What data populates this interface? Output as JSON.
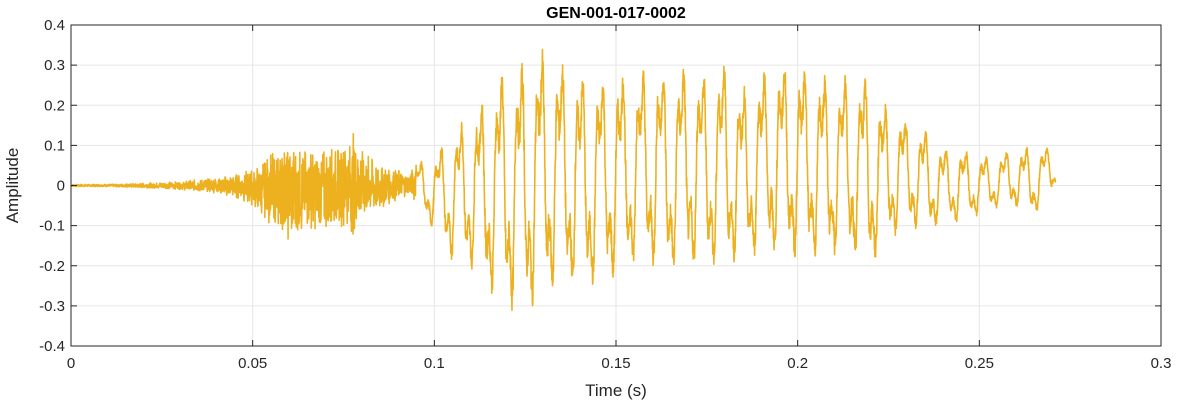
{
  "chart_data": {
    "type": "line",
    "title": "GEN-001-017-0002",
    "xlabel": "Time (s)",
    "ylabel": "Amplitude",
    "xlim": [
      0,
      0.3
    ],
    "ylim": [
      -0.4,
      0.4
    ],
    "xticks": [
      0,
      0.05,
      0.1,
      0.15,
      0.2,
      0.25,
      0.3
    ],
    "xtick_labels": [
      "0",
      "0.05",
      "0.1",
      "0.15",
      "0.2",
      "0.25",
      "0.3"
    ],
    "yticks": [
      -0.4,
      -0.3,
      -0.2,
      -0.1,
      0,
      0.1,
      0.2,
      0.3,
      0.4
    ],
    "ytick_labels": [
      "-0.4",
      "-0.3",
      "-0.2",
      "-0.1",
      "0",
      "0.1",
      "0.2",
      "0.3",
      "0.4"
    ],
    "grid": true,
    "colors": {
      "line": "#EDB120",
      "grid": "#e6e6e6",
      "axes": "#262626"
    },
    "series": [
      {
        "x": [
          0,
          0.01,
          0.02,
          0.03,
          0.04,
          0.045,
          0.05,
          0.055,
          0.06,
          0.065,
          0.07,
          0.075,
          0.078,
          0.08,
          0.085,
          0.09,
          0.093,
          0.095,
          0.1,
          0.105,
          0.11,
          0.115,
          0.12,
          0.125,
          0.13,
          0.135,
          0.14,
          0.145,
          0.15,
          0.155,
          0.16,
          0.165,
          0.17,
          0.175,
          0.18,
          0.185,
          0.19,
          0.195,
          0.2,
          0.205,
          0.21,
          0.215,
          0.22,
          0.225,
          0.23,
          0.235,
          0.24,
          0.245,
          0.25,
          0.255,
          0.26,
          0.265,
          0.27,
          0.271
        ],
        "upper": [
          0.003,
          0.003,
          0.006,
          0.01,
          0.02,
          0.03,
          0.04,
          0.08,
          0.1,
          0.09,
          0.1,
          0.1,
          0.14,
          0.09,
          0.05,
          0.04,
          0.03,
          0.06,
          0.08,
          0.15,
          0.2,
          0.25,
          0.33,
          0.33,
          0.36,
          0.33,
          0.3,
          0.29,
          0.3,
          0.3,
          0.32,
          0.3,
          0.32,
          0.29,
          0.33,
          0.26,
          0.3,
          0.33,
          0.32,
          0.3,
          0.29,
          0.3,
          0.28,
          0.2,
          0.18,
          0.15,
          0.1,
          0.1,
          0.08,
          0.08,
          0.1,
          0.1,
          0.1,
          0.05
        ],
        "lower": [
          -0.003,
          -0.003,
          -0.006,
          -0.01,
          -0.02,
          -0.03,
          -0.05,
          -0.1,
          -0.14,
          -0.11,
          -0.12,
          -0.1,
          -0.13,
          -0.08,
          -0.06,
          -0.04,
          -0.02,
          -0.05,
          -0.12,
          -0.2,
          -0.22,
          -0.28,
          -0.33,
          -0.34,
          -0.3,
          -0.28,
          -0.28,
          -0.27,
          -0.25,
          -0.22,
          -0.22,
          -0.24,
          -0.22,
          -0.23,
          -0.21,
          -0.22,
          -0.18,
          -0.2,
          -0.2,
          -0.2,
          -0.2,
          -0.2,
          -0.22,
          -0.15,
          -0.12,
          -0.12,
          -0.1,
          -0.1,
          -0.08,
          -0.06,
          -0.06,
          -0.08,
          -0.02,
          0
        ]
      }
    ]
  }
}
